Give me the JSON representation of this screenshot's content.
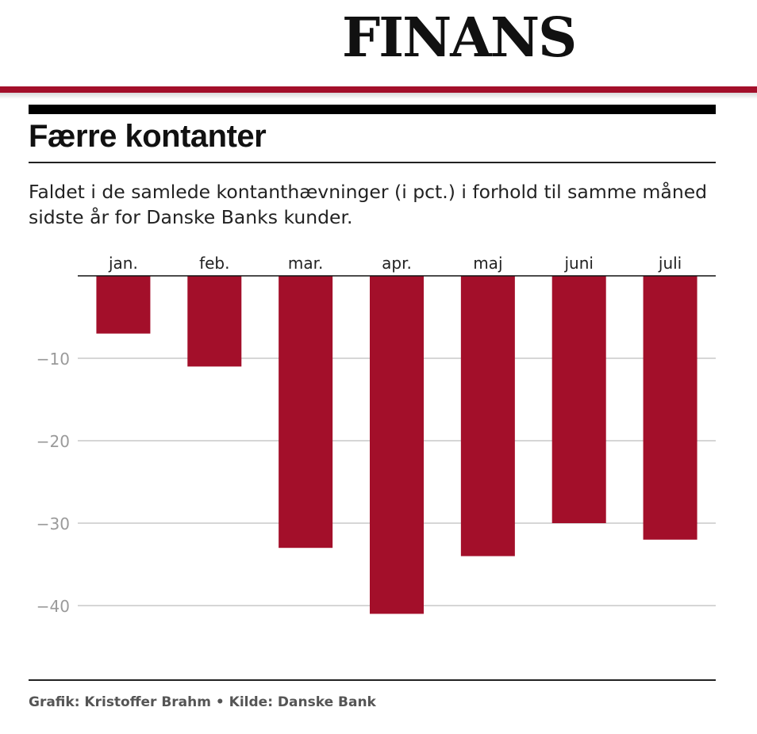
{
  "header": {
    "logo": "FINANS"
  },
  "title": "Færre kontanter",
  "subtitle": "Faldet i de samlede kontanthævninger (i pct.) i forhold til samme måned sidste år for Danske Banks kunder.",
  "credit": "Grafik: Kristoffer Brahm • Kilde: Danske Bank",
  "colors": {
    "bar": "#a30f2a",
    "brand_rule": "#a30f2a",
    "gridline": "#c8c8c8",
    "tick": "#9a9a9a"
  },
  "chart_data": {
    "type": "bar",
    "categories": [
      "jan.",
      "feb.",
      "mar.",
      "apr.",
      "maj",
      "juni",
      "juli"
    ],
    "values": [
      -7,
      -11,
      -33,
      -41,
      -34,
      -30,
      -32
    ],
    "ylim": [
      -45,
      0
    ],
    "yticks": [
      -10,
      -20,
      -30,
      -40
    ],
    "ytick_labels": [
      "−10",
      "−20",
      "−30",
      "−40"
    ],
    "category_axis_position": "top",
    "grid": true
  }
}
